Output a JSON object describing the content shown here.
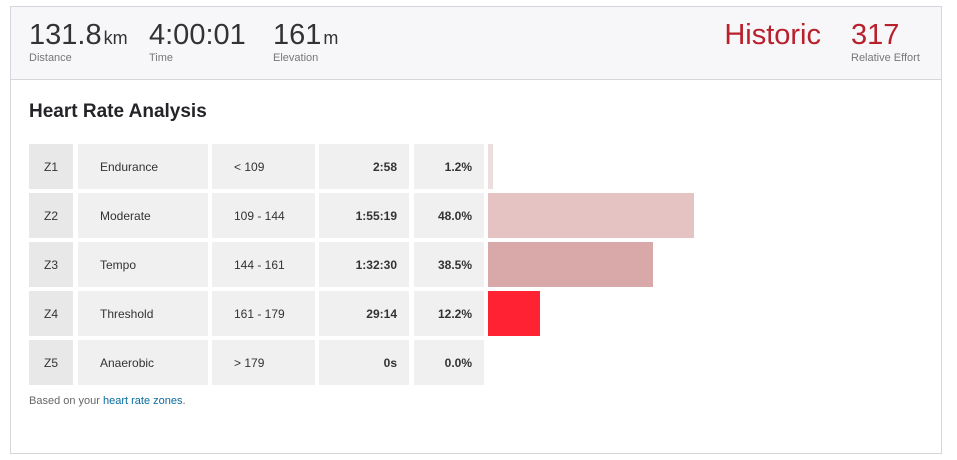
{
  "header": {
    "stats": [
      {
        "value": "131.8",
        "unit": "km",
        "label": "Distance"
      },
      {
        "value": "4:00:01",
        "unit": "",
        "label": "Time"
      },
      {
        "value": "161",
        "unit": "m",
        "label": "Elevation"
      }
    ],
    "effort_status": "Historic",
    "effort_value": "317",
    "effort_label": "Relative Effort"
  },
  "section_title": "Heart Rate Analysis",
  "table": {
    "rows": [
      {
        "zone": "Z1",
        "name": "Endurance",
        "range": "< 109",
        "time": "2:58",
        "percent": 1.2,
        "percent_label": "1.2%",
        "color": "#ecdede"
      },
      {
        "zone": "Z2",
        "name": "Moderate",
        "range": "109 - 144",
        "time": "1:55:19",
        "percent": 48.0,
        "percent_label": "48.0%",
        "color": "#e6c3c3"
      },
      {
        "zone": "Z3",
        "name": "Tempo",
        "range": "144 - 161",
        "time": "1:32:30",
        "percent": 38.5,
        "percent_label": "38.5%",
        "color": "#d9a8a9"
      },
      {
        "zone": "Z4",
        "name": "Threshold",
        "range": "161 - 179",
        "time": "29:14",
        "percent": 12.2,
        "percent_label": "12.2%",
        "color": "#ff2233"
      },
      {
        "zone": "Z5",
        "name": "Anaerobic",
        "range": "> 179",
        "time": "0s",
        "percent": 0.0,
        "percent_label": "0.0%",
        "color": "#d9a8a9"
      }
    ]
  },
  "footer": {
    "text": "Based on your",
    "link": "heart rate zones",
    "end": "."
  }
}
